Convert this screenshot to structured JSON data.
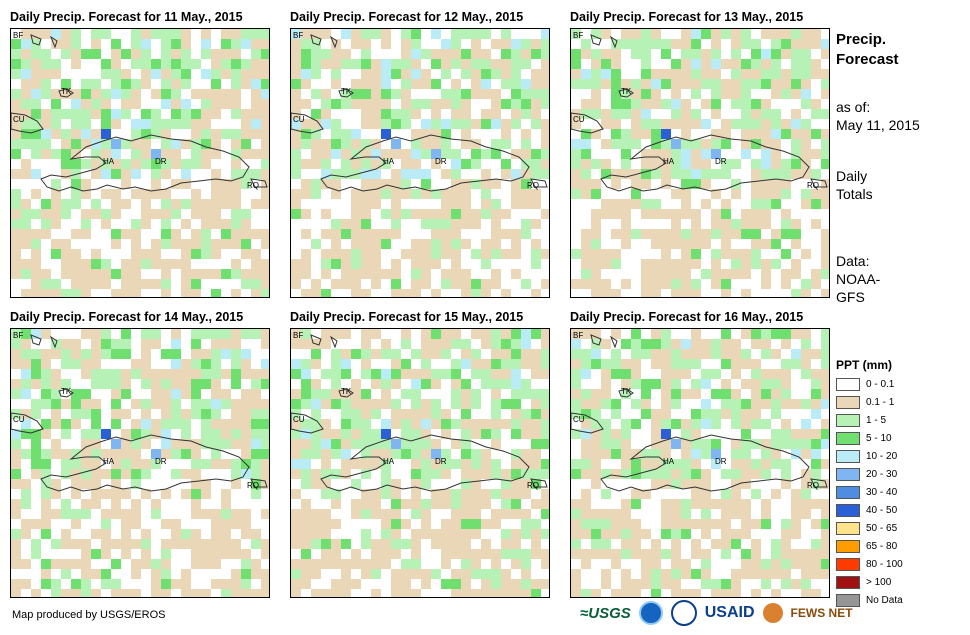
{
  "panels": [
    {
      "title": "Daily  Precip.  Forecast for 11 May., 2015",
      "seed": 11
    },
    {
      "title": "Daily  Precip.  Forecast for 12 May., 2015",
      "seed": 12
    },
    {
      "title": "Daily  Precip.  Forecast for 13 May., 2015",
      "seed": 13
    },
    {
      "title": "Daily  Precip.  Forecast for 14 May., 2015",
      "seed": 14
    },
    {
      "title": "Daily  Precip.  Forecast for 15 May., 2015",
      "seed": 15
    },
    {
      "title": "Daily  Precip.  Forecast for 16 May., 2015",
      "seed": 16
    }
  ],
  "map_labels": {
    "bf": "BF",
    "cu": "CU",
    "tk": "TK",
    "ha": "HA",
    "dr": "DR",
    "rq": "RQ"
  },
  "side": {
    "title_line1": "Precip.",
    "title_line2": "Forecast",
    "asof_line1": "as of:",
    "asof_line2": "May 11, 2015",
    "daily_line1": "Daily",
    "daily_line2": "Totals",
    "data_line1": "Data:",
    "data_line2": "NOAA-",
    "data_line3": "GFS"
  },
  "legend": {
    "title": "PPT (mm)",
    "items": [
      {
        "label": "0 - 0.1",
        "color": "#ffffff"
      },
      {
        "label": "0.1 - 1",
        "color": "#ead7b7"
      },
      {
        "label": "1 - 5",
        "color": "#b6f2b6"
      },
      {
        "label": "5 - 10",
        "color": "#6fe06f"
      },
      {
        "label": "10 - 20",
        "color": "#b9ecf7"
      },
      {
        "label": "20 - 30",
        "color": "#7fb6f2"
      },
      {
        "label": "30 - 40",
        "color": "#4e8ddf"
      },
      {
        "label": "40 - 50",
        "color": "#2a5fd6"
      },
      {
        "label": "50 - 65",
        "color": "#ffe28c"
      },
      {
        "label": "65 - 80",
        "color": "#ff9d00"
      },
      {
        "label": "80 - 100",
        "color": "#ff3b00"
      },
      {
        "label": "> 100",
        "color": "#a01212"
      },
      {
        "label": "No Data",
        "color": "#969696"
      }
    ]
  },
  "footer": {
    "credit": "Map produced by USGS/EROS",
    "usgs": "≈USGS",
    "usaid": "USAID",
    "fews": "FEWS NET"
  }
}
